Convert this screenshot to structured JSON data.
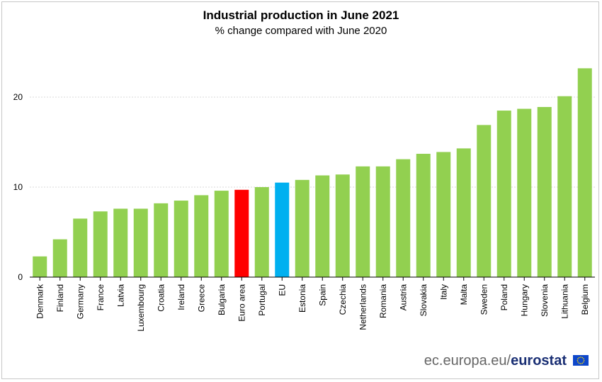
{
  "chart_data": {
    "type": "bar",
    "title": "Industrial production in June 2021",
    "subtitle": "% change compared with June 2020",
    "categories": [
      "Denmark",
      "Finland",
      "Germany",
      "France",
      "Latvia",
      "Luxembourg",
      "Croatia",
      "Ireland",
      "Greece",
      "Bulgaria",
      "Euro area",
      "Portugal",
      "EU",
      "Estonia",
      "Spain",
      "Czechia",
      "Netherlands",
      "Romania",
      "Austria",
      "Slovakia",
      "Italy",
      "Malta",
      "Sweden",
      "Poland",
      "Hungary",
      "Slovenia",
      "Lithuania",
      "Belgium"
    ],
    "values": [
      2.3,
      4.2,
      6.5,
      7.3,
      7.6,
      7.6,
      8.2,
      8.5,
      9.1,
      9.6,
      9.7,
      10.0,
      10.5,
      10.8,
      11.3,
      11.4,
      12.3,
      12.3,
      13.1,
      13.7,
      13.9,
      14.3,
      16.9,
      18.5,
      18.7,
      18.9,
      20.1,
      23.2
    ],
    "bar_colors": [
      "#92d050",
      "#92d050",
      "#92d050",
      "#92d050",
      "#92d050",
      "#92d050",
      "#92d050",
      "#92d050",
      "#92d050",
      "#92d050",
      "#ff0000",
      "#92d050",
      "#00b0f0",
      "#92d050",
      "#92d050",
      "#92d050",
      "#92d050",
      "#92d050",
      "#92d050",
      "#92d050",
      "#92d050",
      "#92d050",
      "#92d050",
      "#92d050",
      "#92d050",
      "#92d050",
      "#92d050",
      "#92d050"
    ],
    "ylim": [
      0,
      25
    ],
    "yticks": [
      0,
      10,
      20
    ],
    "grid": true,
    "xlabel": "",
    "ylabel": ""
  },
  "footer": {
    "site": "ec.europa.eu/",
    "brand": "eurostat"
  }
}
